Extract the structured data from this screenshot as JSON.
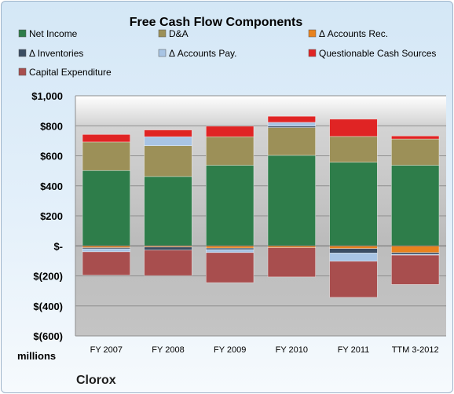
{
  "chart_data": {
    "type": "bar",
    "stacked": true,
    "title": "Free Cash Flow Components",
    "unit_label": "millions",
    "company": "Clorox",
    "categories": [
      "FY 2007",
      "FY 2008",
      "FY 2009",
      "FY 2010",
      "FY 2011",
      "TTM 3-2012"
    ],
    "ylim": [
      -600,
      1000
    ],
    "yticks": [
      1000,
      800,
      600,
      400,
      200,
      0,
      -200,
      -400,
      -600
    ],
    "ytick_labels": [
      "$1,000",
      "$800",
      "$600",
      "$400",
      "$200",
      "$-",
      "$(200)",
      "$(400)",
      "$(600)"
    ],
    "legend_position": "top",
    "grid": true,
    "series": [
      {
        "name": "Net Income",
        "color": "#2e7d4a",
        "values": [
          502,
          462,
          537,
          603,
          557,
          537
        ]
      },
      {
        "name": "D&A",
        "color": "#9c9058",
        "values": [
          190,
          205,
          190,
          185,
          172,
          175
        ]
      },
      {
        "name": "Δ Accounts Rec.",
        "color": "#e8821e",
        "values": [
          -12,
          -8,
          -15,
          -12,
          -18,
          -45
        ]
      },
      {
        "name": "Δ Inventories",
        "color": "#3a4d63",
        "values": [
          -8,
          -20,
          -10,
          10,
          -30,
          -12
        ]
      },
      {
        "name": "Δ Accounts Pay.",
        "color": "#a8c4e4",
        "values": [
          -20,
          60,
          -20,
          25,
          -55,
          -5
        ]
      },
      {
        "name": "Questionable Cash Sources",
        "color": "#e02424",
        "values": [
          50,
          45,
          70,
          40,
          115,
          20
        ]
      },
      {
        "name": "Capital Expenditure",
        "color": "#a84e4e",
        "values": [
          -155,
          -170,
          -200,
          -195,
          -240,
          -195
        ]
      }
    ]
  }
}
